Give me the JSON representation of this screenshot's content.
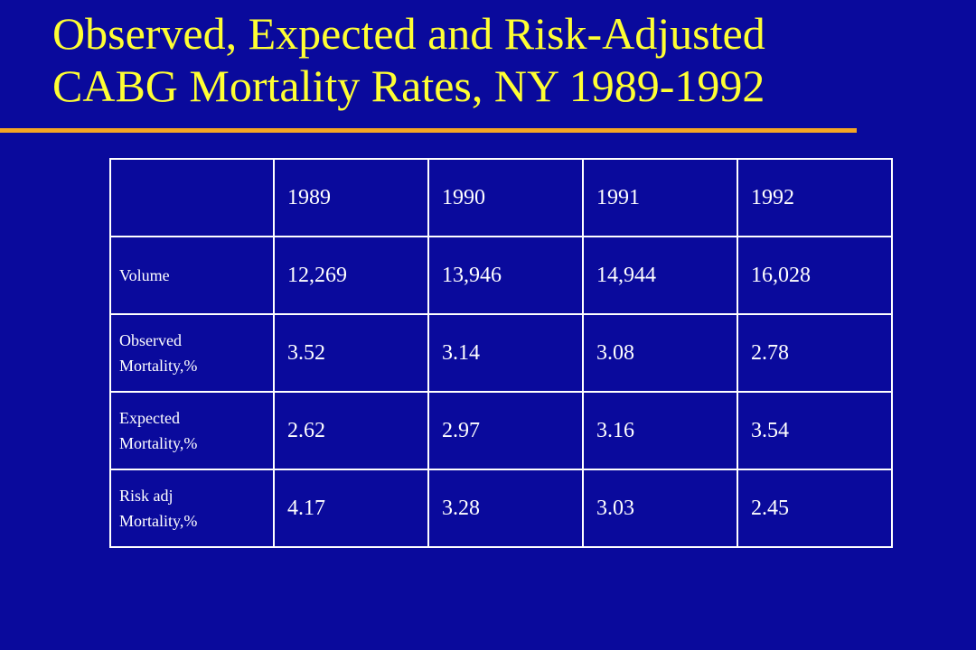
{
  "title": {
    "line1": "Observed, Expected and Risk-Adjusted",
    "line2": "CABG Mortality Rates, NY 1989-1992"
  },
  "colors": {
    "background": "#0a0a9c",
    "title": "#ffff33",
    "rule": "#f5a623",
    "table_text": "#ffffff",
    "table_border": "#ffffff"
  },
  "table": {
    "headers": [
      "1989",
      "1990",
      "1991",
      "1992"
    ],
    "rows": [
      {
        "label_lines": [
          "Volume"
        ],
        "values": [
          "12,269",
          "13,946",
          "14,944",
          "16,028"
        ]
      },
      {
        "label_lines": [
          "Observed",
          "Mortality,%"
        ],
        "values": [
          "3.52",
          "3.14",
          "3.08",
          "2.78"
        ]
      },
      {
        "label_lines": [
          "Expected",
          "Mortality,%"
        ],
        "values": [
          "2.62",
          "2.97",
          "3.16",
          "3.54"
        ]
      },
      {
        "label_lines": [
          "Risk adj",
          "Mortality,%"
        ],
        "values": [
          "4.17",
          "3.28",
          "3.03",
          "2.45"
        ]
      }
    ]
  }
}
